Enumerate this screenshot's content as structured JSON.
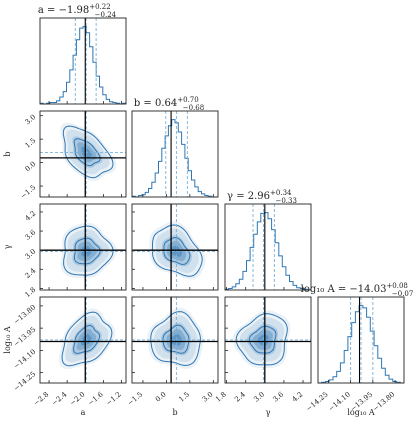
{
  "chart_data": {
    "type": "corner",
    "parameters": [
      {
        "key": "a",
        "label": "a",
        "title": "a = −1.98",
        "median": -1.98,
        "err_hi": "+0.22",
        "err_lo": "−0.24",
        "range": [
          -3.0,
          -1.1
        ],
        "ticks": [
          -2.8,
          -2.4,
          -2.0,
          -1.6,
          -1.2
        ],
        "tick_labels": [
          "−2.8",
          "−2.4",
          "−2.0",
          "−1.6",
          "−1.2"
        ],
        "truth": -2.0
      },
      {
        "key": "b",
        "label": "b",
        "title": "b = 0.64",
        "median": 0.64,
        "err_hi": "+0.70",
        "err_lo": "−0.68",
        "range": [
          -2.2,
          3.3
        ],
        "ticks": [
          -1.5,
          0.0,
          1.5,
          3.0
        ],
        "tick_labels": [
          "−1.5",
          "0.0",
          "1.5",
          "3.0"
        ],
        "truth": 0.3
      },
      {
        "key": "gamma",
        "label": "γ",
        "title": "γ = 2.96",
        "median": 2.96,
        "err_hi": "+0.34",
        "err_lo": "−0.33",
        "range": [
          1.75,
          4.45
        ],
        "ticks": [
          1.8,
          2.4,
          3.0,
          3.6,
          4.2
        ],
        "tick_labels": [
          "1.8",
          "2.4",
          "3.0",
          "3.6",
          "4.2"
        ],
        "truth": 3.0
      },
      {
        "key": "log10A",
        "label": "log₁₀ A",
        "title": "log₁₀ A = −14.03",
        "median": -14.03,
        "err_hi": "+0.08",
        "err_lo": "−0.07",
        "range": [
          -14.32,
          -13.74
        ],
        "ticks": [
          -14.25,
          -14.1,
          -13.95,
          -13.8
        ],
        "tick_labels": [
          "−14.25",
          "−14.10",
          "−13.95",
          "−13.80"
        ],
        "truth": -14.04
      }
    ],
    "y_tick_labels_log10A": [
      "−13.80",
      "−13.95",
      "−14.10",
      "−14.25"
    ],
    "histograms": [
      [
        1,
        0,
        1,
        2,
        2,
        4,
        9,
        16,
        28,
        44,
        63,
        83,
        98,
        100,
        92,
        74,
        54,
        36,
        22,
        12,
        6,
        3,
        2,
        1,
        0,
        1
      ],
      [
        1,
        0,
        2,
        3,
        6,
        11,
        19,
        31,
        46,
        63,
        79,
        92,
        100,
        96,
        84,
        68,
        50,
        34,
        22,
        13,
        7,
        4,
        2,
        1,
        0,
        0
      ],
      [
        1,
        2,
        4,
        8,
        14,
        24,
        38,
        55,
        72,
        88,
        99,
        100,
        92,
        78,
        61,
        44,
        30,
        19,
        11,
        6,
        3,
        2,
        1,
        0
      ],
      [
        0,
        1,
        2,
        4,
        8,
        15,
        26,
        42,
        60,
        78,
        92,
        100,
        97,
        85,
        67,
        48,
        32,
        19,
        10,
        5,
        2,
        1,
        0
      ]
    ],
    "correlations": {
      "1-0": -0.45,
      "2-0": 0.05,
      "2-1": -0.3,
      "3-0": 0.35,
      "3-1": 0.0,
      "3-2": 0.1
    },
    "colors": {
      "contour": "#2f77b4",
      "truth": "#000000",
      "quantile": "#7bb0d6",
      "fill": "#2f77b4"
    }
  }
}
